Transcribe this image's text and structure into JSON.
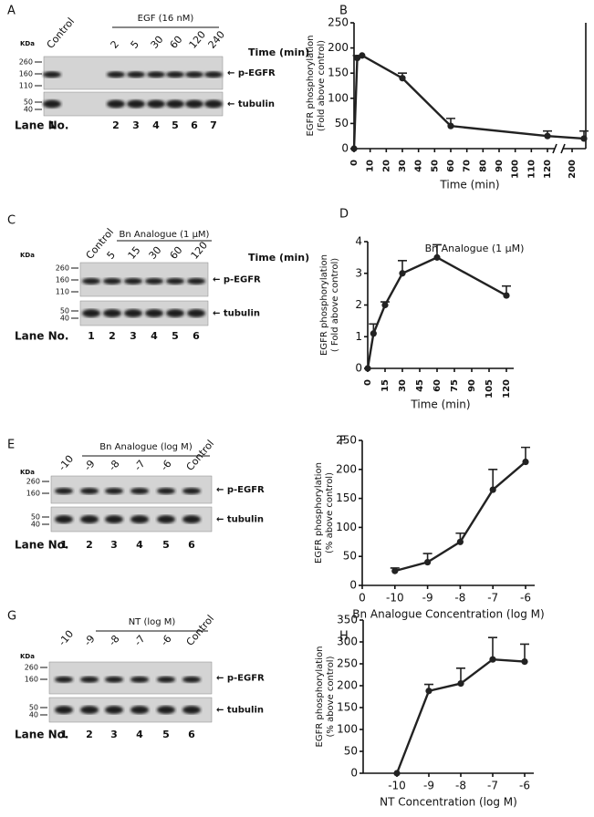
{
  "blots": [
    {
      "letter": "A",
      "kda": "KDa",
      "treatment": "EGF (16 nM)",
      "lane_labels": [
        "Control",
        "2",
        "5",
        "30",
        "60",
        "120",
        "240"
      ],
      "time_label": "Time (min)",
      "upper_markers": [
        "260",
        "160",
        "110"
      ],
      "lower_markers": [
        "50",
        "40"
      ],
      "upper_band": "← p-EGFR",
      "lower_band": "← tubulin",
      "lane_title": "Lane No.",
      "lane_numbers": [
        "1",
        "2",
        "3",
        "4",
        "5",
        "6",
        "7"
      ]
    },
    {
      "letter": "C",
      "kda": "KDa",
      "treatment": "Bn Analogue (1 μM)",
      "lane_labels": [
        "Control",
        "5",
        "15",
        "30",
        "60",
        "120"
      ],
      "time_label": "Time (min)",
      "upper_markers": [
        "260",
        "160",
        "110"
      ],
      "lower_markers": [
        "50",
        "40"
      ],
      "upper_band": "← p-EGFR",
      "lower_band": "← tubulin",
      "lane_title": "Lane No.",
      "lane_numbers": [
        "1",
        "2",
        "3",
        "4",
        "5",
        "6"
      ]
    },
    {
      "letter": "E",
      "kda": "KDa",
      "treatment": "Bn Analogue (log M)",
      "lane_labels": [
        "-10",
        "-9",
        "-8",
        "-7",
        "-6",
        "Control"
      ],
      "upper_markers": [
        "260",
        "160"
      ],
      "lower_markers": [
        "50",
        "40"
      ],
      "upper_band": "← p-EGFR",
      "lower_band": "← tubulin",
      "lane_title": "Lane No.",
      "lane_numbers": [
        "1",
        "2",
        "3",
        "4",
        "5",
        "6"
      ]
    },
    {
      "letter": "G",
      "kda": "KDa",
      "treatment": "NT (log M)",
      "lane_labels": [
        "-10",
        "-9",
        "-8",
        "-7",
        "-6",
        "Control"
      ],
      "upper_markers": [
        "260",
        "160"
      ],
      "lower_markers": [
        "50",
        "40"
      ],
      "upper_band": "← p-EGFR",
      "lower_band": "← tubulin",
      "lane_title": "Lane No.",
      "lane_numbers": [
        "1",
        "2",
        "3",
        "4",
        "5",
        "6"
      ]
    }
  ],
  "chart_data": [
    {
      "type": "line",
      "letter": "B",
      "ylabel": [
        "EGFR phosphorylation",
        "(Fold above control)"
      ],
      "xlabel": "Time (min)",
      "x": [
        0,
        2,
        5,
        30,
        60,
        120,
        240
      ],
      "values": [
        0,
        180,
        185,
        140,
        45,
        25,
        20
      ],
      "errors": [
        null,
        5,
        null,
        10,
        15,
        10,
        15
      ],
      "xlim": [
        0,
        240
      ],
      "xticks": [
        0,
        10,
        20,
        30,
        40,
        50,
        60,
        70,
        80,
        90,
        100,
        110,
        120,
        200
      ],
      "axis_break": true,
      "ylim": [
        0,
        250
      ],
      "yticks": [
        0,
        50,
        100,
        150,
        200,
        250
      ],
      "color": "#222222"
    },
    {
      "type": "line",
      "letter": "D",
      "ylabel": [
        "EGFR  phosphorylation",
        "( Fold above control)"
      ],
      "xlabel": "Time (min)",
      "annotation": "Bn Analogue (1 μM)",
      "x": [
        0,
        5,
        15,
        30,
        60,
        120
      ],
      "values": [
        0,
        1.1,
        2,
        3,
        3.5,
        2.3
      ],
      "errors": [
        null,
        0.3,
        0.1,
        0.4,
        0.4,
        0.3
      ],
      "xlim": [
        0,
        120
      ],
      "xticks": [
        0,
        15,
        30,
        45,
        60,
        75,
        90,
        105,
        120
      ],
      "ylim": [
        0,
        4
      ],
      "yticks": [
        0,
        1,
        2,
        3,
        4
      ],
      "color": "#222222"
    },
    {
      "type": "line",
      "letter": "F",
      "ylabel": [
        "EGFR phosphorylation",
        "(% above  control)"
      ],
      "xlabel": "Bn Analogue Concentration (log M)",
      "categories": [
        "0",
        "-10",
        "-9",
        "-8",
        "-7",
        "-6"
      ],
      "values": [
        null,
        25,
        40,
        75,
        165,
        213
      ],
      "errors": [
        null,
        5,
        15,
        15,
        35,
        25
      ],
      "ylim": [
        0,
        250
      ],
      "yticks": [
        0,
        50,
        100,
        150,
        200,
        250
      ],
      "color": "#222222"
    },
    {
      "type": "line",
      "letter": "H",
      "ylabel": [
        "EGFR  phosphorylation",
        "(% above control)"
      ],
      "xlabel": "NT Concentration (log M)",
      "categories": [
        "-10",
        "-9",
        "-8",
        "-7",
        "-6"
      ],
      "values": [
        0,
        188,
        205,
        260,
        255
      ],
      "errors": [
        null,
        15,
        35,
        50,
        40
      ],
      "ylim": [
        0,
        350
      ],
      "yticks": [
        0,
        50,
        100,
        150,
        200,
        250,
        300,
        350
      ],
      "color": "#222222"
    }
  ]
}
